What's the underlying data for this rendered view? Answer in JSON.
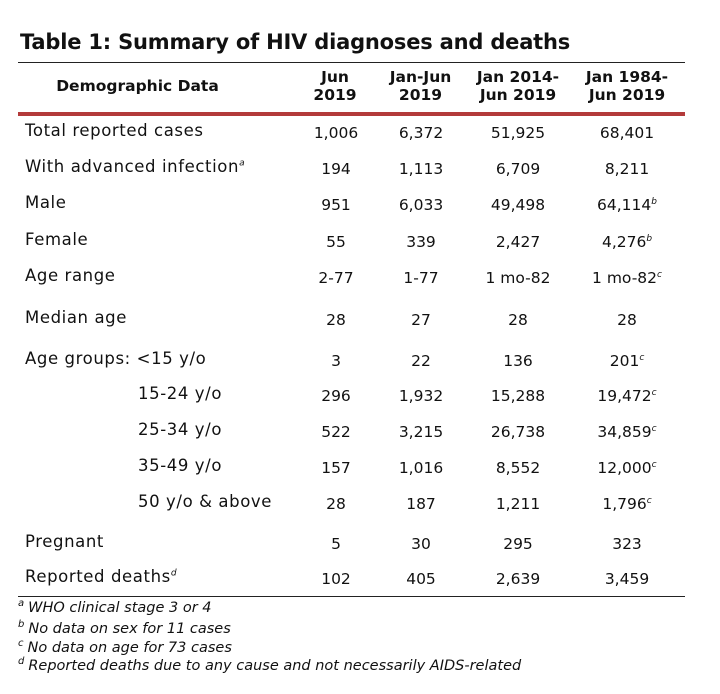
{
  "title": "Table 1: Summary of HIV diagnoses and deaths",
  "headers": {
    "demographic": "Demographic Data",
    "c1_l1": "Jun",
    "c1_l2": "2019",
    "c2_l1": "Jan-Jun",
    "c2_l2": "2019",
    "c3_l1": "Jan 2014-",
    "c3_l2": "Jun 2019",
    "c4_l1": "Jan 1984-",
    "c4_l2": "Jun 2019"
  },
  "rows": [
    {
      "label": "Total reported cases",
      "label_sup": "",
      "v1": "1,006",
      "v2": "6,372",
      "v3": "51,925",
      "v4": "68,401",
      "v4_sup": ""
    },
    {
      "label": "With advanced infection",
      "label_sup": "a",
      "v1": "194",
      "v2": "1,113",
      "v3": "6,709",
      "v4": "8,211",
      "v4_sup": ""
    },
    {
      "label": "Male",
      "label_sup": "",
      "v1": "951",
      "v2": "6,033",
      "v3": "49,498",
      "v4": "64,114",
      "v4_sup": "b"
    },
    {
      "label": "Female",
      "label_sup": "",
      "v1": "55",
      "v2": "339",
      "v3": "2,427",
      "v4": "4,276",
      "v4_sup": "b"
    },
    {
      "label": "Age range",
      "label_sup": "",
      "v1": "2-77",
      "v2": "1-77",
      "v3": "1 mo-82",
      "v4": "1 mo-82",
      "v4_sup": "c"
    },
    {
      "label": "Median age",
      "label_sup": "",
      "v1": "28",
      "v2": "27",
      "v3": "28",
      "v4": "28",
      "v4_sup": ""
    },
    {
      "label": "Age groups: <15 y/o",
      "label_sup": "",
      "v1": "3",
      "v2": "22",
      "v3": "136",
      "v4": "201",
      "v4_sup": "c"
    },
    {
      "label": "15-24 y/o",
      "label_sup": "",
      "v1": "296",
      "v2": "1,932",
      "v3": "15,288",
      "v4": "19,472",
      "v4_sup": "c"
    },
    {
      "label": "25-34 y/o",
      "label_sup": "",
      "v1": "522",
      "v2": "3,215",
      "v3": "26,738",
      "v4": "34,859",
      "v4_sup": "c"
    },
    {
      "label": "35-49 y/o",
      "label_sup": "",
      "v1": "157",
      "v2": "1,016",
      "v3": "8,552",
      "v4": "12,000",
      "v4_sup": "c"
    },
    {
      "label": "50 y/o & above",
      "label_sup": "",
      "v1": "28",
      "v2": "187",
      "v3": "1,211",
      "v4": "1,796",
      "v4_sup": "c"
    },
    {
      "label": "Pregnant",
      "label_sup": "",
      "v1": "5",
      "v2": "30",
      "v3": "295",
      "v4": "323",
      "v4_sup": ""
    },
    {
      "label": "Reported deaths",
      "label_sup": "d",
      "v1": "102",
      "v2": "405",
      "v3": "2,639",
      "v4": "3,459",
      "v4_sup": ""
    }
  ],
  "footnotes": [
    {
      "mark": "a",
      "text": "WHO clinical stage 3 or 4"
    },
    {
      "mark": "b",
      "text": "No data on sex for 11 cases"
    },
    {
      "mark": "c",
      "text": "No data on age for 73 cases"
    },
    {
      "mark": "d",
      "text": "Reported deaths due to any cause and not necessarily AIDS-related"
    }
  ]
}
